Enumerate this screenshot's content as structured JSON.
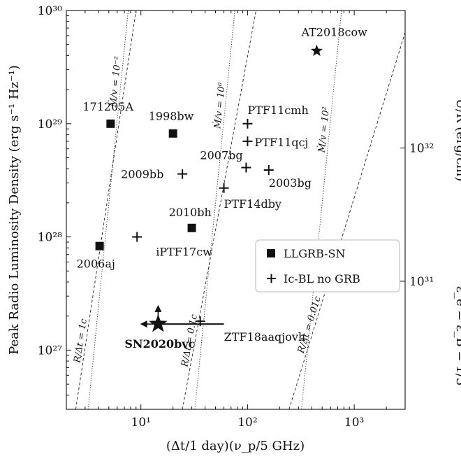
{
  "chart_data": {
    "type": "scatter",
    "xlabel": "(Δt/1 day)(ν_p/5 GHz)",
    "ylabel": "Peak Radio Luminosity Density (erg s⁻¹ Hz⁻¹)",
    "right_ylabel": "U/R (erg/cm)",
    "right_annotation": "ε_e = ε_B = 1/3",
    "xscale": "log",
    "yscale": "log",
    "xlim": [
      2,
      3000
    ],
    "ylim": [
      3e+26,
      1e+30
    ],
    "x_ticks": [
      {
        "value": 10,
        "label": "10¹"
      },
      {
        "value": 100,
        "label": "10²"
      },
      {
        "value": 1000,
        "label": "10³"
      }
    ],
    "y_ticks": [
      {
        "value": 1e+27,
        "label": "10²⁷"
      },
      {
        "value": 1e+28,
        "label": "10²⁸"
      },
      {
        "value": 1e+29,
        "label": "10²⁹"
      },
      {
        "value": 1e+30,
        "label": "10³⁰"
      }
    ],
    "right_ticks": [
      {
        "y": 4.06e+27,
        "label": "10³¹"
      },
      {
        "y": 6.1e+28,
        "label": "10³²"
      }
    ],
    "legend": {
      "position": "center-right",
      "entries": [
        {
          "marker": "square",
          "label": "LLGRB-SN"
        },
        {
          "marker": "plus",
          "label": "Ic-BL no GRB"
        }
      ]
    },
    "series": [
      {
        "name": "LLGRB-SN",
        "marker": "square",
        "points": [
          {
            "label": "171205A",
            "x": 5.2,
            "y": 1e+29
          },
          {
            "label": "1998bw",
            "x": 20,
            "y": 8.2e+28
          },
          {
            "label": "2010bh",
            "x": 30,
            "y": 1.2e+28
          },
          {
            "label": "2006aj",
            "x": 4.1,
            "y": 8.3e+27
          }
        ]
      },
      {
        "name": "Ic-BL no GRB",
        "marker": "plus",
        "points": [
          {
            "label": "PTF11cmh",
            "x": 100,
            "y": 1e+29
          },
          {
            "label": "PTF11qcj",
            "x": 100,
            "y": 7e+28
          },
          {
            "label": "2007bg",
            "x": 97,
            "y": 4.1e+28
          },
          {
            "label": "2003bg",
            "x": 158,
            "y": 3.9e+28
          },
          {
            "label": "2009bb",
            "x": 24.5,
            "y": 3.6e+28
          },
          {
            "label": "PTF14dby",
            "x": 60,
            "y": 2.7e+28
          },
          {
            "label": "iPTF17cw",
            "x": 9.2,
            "y": 1e+28
          },
          {
            "label": "ZTF18aaqjovh",
            "x": 36,
            "y": 1.8e+27
          }
        ]
      },
      {
        "name": "",
        "marker": "star",
        "points": [
          {
            "label": "AT2018cow",
            "x": 445,
            "y": 4.4e+29
          }
        ]
      },
      {
        "name": "",
        "marker": "big-star",
        "points": [
          {
            "label": "SN2020bvc",
            "x": 14.5,
            "y": 1.7e+27
          }
        ]
      }
    ],
    "sn2020bvc_limits": {
      "xerr": [
        13.5,
        60
      ],
      "up_arrow": {
        "x": 14.5,
        "y_from": 1.9e+27,
        "y_to": 2.4e+27
      },
      "left_arrow": {
        "y": 1.7e+27,
        "x_from": 13,
        "x_to": 10.3
      }
    },
    "velocity_lines": [
      {
        "label": "R/Δt = 1c",
        "points": [
          [
            2.45,
            3e+26
          ],
          [
            9,
            1e+30
          ]
        ]
      },
      {
        "label": "R/Δt = 0.1c",
        "points": [
          [
            24.5,
            3e+26
          ],
          [
            120,
            1e+30
          ]
        ]
      },
      {
        "label": "R/Δt = 0.01c",
        "points": [
          [
            245,
            3e+26
          ],
          [
            3000,
            6.4e+29
          ]
        ]
      }
    ],
    "massloss_lines": [
      {
        "label": "Ṁ/v = 10⁻²",
        "points": [
          [
            3.2,
            3e+26
          ],
          [
            7.6,
            1e+30
          ]
        ]
      },
      {
        "label": "Ṁ/v = 10⁰",
        "points": [
          [
            32,
            3e+26
          ],
          [
            76,
            1e+30
          ]
        ]
      },
      {
        "label": "Ṁ/v = 10²",
        "points": [
          [
            320,
            3e+26
          ],
          [
            760,
            1e+30
          ]
        ]
      }
    ]
  }
}
